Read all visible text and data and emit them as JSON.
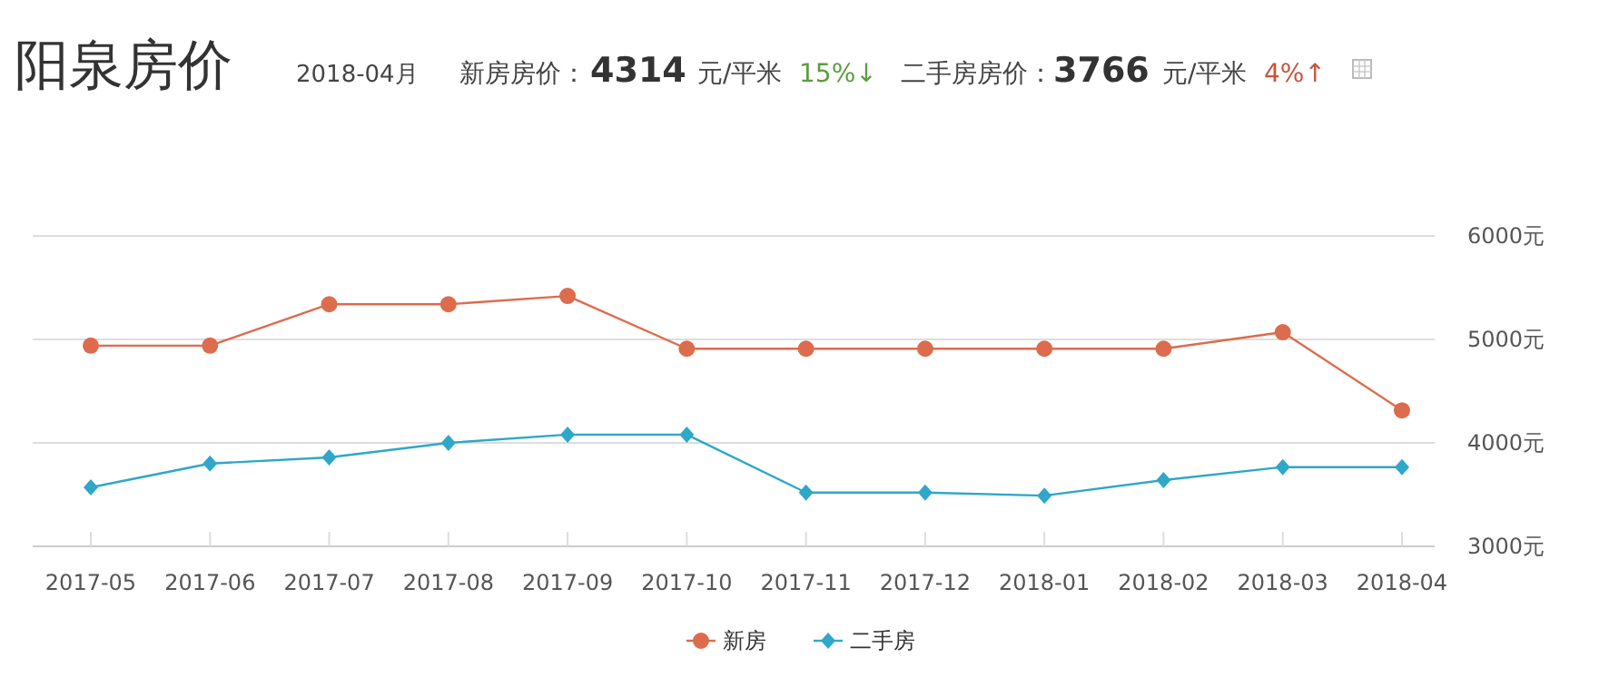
{
  "chart_data": {
    "type": "line",
    "title": "阳泉房价",
    "annotations": [
      "2018-04月",
      "新房房价：",
      "4314",
      "元/平米",
      "15%↓",
      "二手房房价：",
      "3766",
      "元/平米",
      "4%↑"
    ],
    "categories": [
      "2017-05",
      "2017-06",
      "2017-07",
      "2017-08",
      "2017-09",
      "2017-10",
      "2017-11",
      "2017-12",
      "2018-01",
      "2018-02",
      "2018-03",
      "2018-04"
    ],
    "series": [
      {
        "name": "新房",
        "color": "#dd6b4d",
        "marker": "circle",
        "values": [
          4940,
          4940,
          5340,
          5340,
          5420,
          4910,
          4910,
          4910,
          4910,
          4910,
          5070,
          4314
        ]
      },
      {
        "name": "二手房",
        "color": "#2ea7c9",
        "marker": "diamond",
        "values": [
          3570,
          3800,
          3860,
          4000,
          4080,
          4080,
          3520,
          3520,
          3490,
          3640,
          3766,
          3766
        ]
      }
    ],
    "ylim": [
      3000,
      6000
    ],
    "yticks": [
      {
        "value": 3000,
        "label": "3000元"
      },
      {
        "value": 4000,
        "label": "4000元"
      },
      {
        "value": 5000,
        "label": "5000元"
      },
      {
        "value": 6000,
        "label": "6000元"
      }
    ],
    "grid": "y",
    "legend": "bottom"
  }
}
